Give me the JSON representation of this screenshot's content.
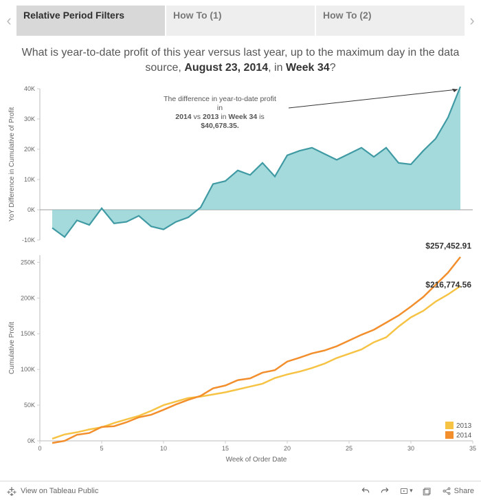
{
  "tabs": {
    "items": [
      {
        "label": "Relative Period Filters",
        "active": true
      },
      {
        "label": "How To (1)",
        "active": false
      },
      {
        "label": "How To (2)",
        "active": false
      }
    ]
  },
  "title": {
    "pre": "What is year-to-date profit of this year versus last year, up to the maximum day in the data source, ",
    "date": "August 23, 2014",
    "mid": ", in ",
    "week": "Week 34",
    "post": "?"
  },
  "annotation": {
    "line1": "The difference in year-to-date profit",
    "line2": "in",
    "line3a": "2014",
    "line3b": " vs ",
    "line3c": "2013",
    "line3d": " in ",
    "line3e": "Week 34",
    "line3f": " is",
    "line4": "$40,678.35."
  },
  "top_chart": {
    "type": "area",
    "y_title": "YoY Difference in Cumulative of Profit",
    "fill_color": "#87cdd2",
    "stroke_color": "#3f9aa3",
    "background": "#ffffff",
    "grid_color": "#e6e6e6",
    "ylim": [
      -10000,
      40000
    ],
    "yticks": [
      -10000,
      0,
      10000,
      20000,
      30000,
      40000
    ],
    "ytick_labels": [
      "-10K",
      "0K",
      "10K",
      "20K",
      "30K",
      "40K"
    ],
    "x_range": [
      0,
      35
    ],
    "values": [
      [
        1,
        -6000
      ],
      [
        2,
        -9000
      ],
      [
        3,
        -3500
      ],
      [
        4,
        -5000
      ],
      [
        5,
        500
      ],
      [
        6,
        -4500
      ],
      [
        7,
        -4000
      ],
      [
        8,
        -2000
      ],
      [
        9,
        -5500
      ],
      [
        10,
        -6500
      ],
      [
        11,
        -4000
      ],
      [
        12,
        -2500
      ],
      [
        13,
        800
      ],
      [
        14,
        8500
      ],
      [
        15,
        9500
      ],
      [
        16,
        13000
      ],
      [
        17,
        11500
      ],
      [
        18,
        15500
      ],
      [
        19,
        11000
      ],
      [
        20,
        18000
      ],
      [
        21,
        19500
      ],
      [
        22,
        20500
      ],
      [
        23,
        18500
      ],
      [
        24,
        16500
      ],
      [
        25,
        18500
      ],
      [
        26,
        20500
      ],
      [
        27,
        17500
      ],
      [
        28,
        20500
      ],
      [
        29,
        15500
      ],
      [
        30,
        15000
      ],
      [
        31,
        19500
      ],
      [
        32,
        23500
      ],
      [
        33,
        30500
      ],
      [
        34,
        40678
      ]
    ]
  },
  "bottom_chart": {
    "type": "line",
    "y_title": "Cumulative Profit",
    "x_title": "Week of Order Date",
    "background": "#ffffff",
    "grid_color": "#e6e6e6",
    "ylim": [
      0,
      260000
    ],
    "yticks": [
      0,
      50000,
      100000,
      150000,
      200000,
      250000
    ],
    "ytick_labels": [
      "0K",
      "50K",
      "100K",
      "150K",
      "200K",
      "250K"
    ],
    "x_range": [
      0,
      35
    ],
    "xticks": [
      0,
      5,
      10,
      15,
      20,
      25,
      30,
      35
    ],
    "line_width": 2.5,
    "series": [
      {
        "name": "2013",
        "color": "#f6c344",
        "callout": "$216,774.56",
        "values": [
          [
            1,
            3000
          ],
          [
            2,
            9000
          ],
          [
            3,
            12000
          ],
          [
            4,
            16000
          ],
          [
            5,
            19000
          ],
          [
            6,
            25000
          ],
          [
            7,
            30000
          ],
          [
            8,
            35000
          ],
          [
            9,
            42000
          ],
          [
            10,
            50000
          ],
          [
            11,
            55000
          ],
          [
            12,
            60000
          ],
          [
            13,
            62000
          ],
          [
            14,
            65000
          ],
          [
            15,
            68000
          ],
          [
            16,
            72000
          ],
          [
            17,
            76000
          ],
          [
            18,
            80000
          ],
          [
            19,
            88000
          ],
          [
            20,
            93000
          ],
          [
            21,
            97000
          ],
          [
            22,
            102000
          ],
          [
            23,
            108000
          ],
          [
            24,
            116000
          ],
          [
            25,
            122000
          ],
          [
            26,
            128000
          ],
          [
            27,
            138000
          ],
          [
            28,
            145000
          ],
          [
            29,
            160000
          ],
          [
            30,
            173000
          ],
          [
            31,
            182000
          ],
          [
            32,
            195000
          ],
          [
            33,
            205000
          ],
          [
            34,
            216774
          ]
        ]
      },
      {
        "name": "2014",
        "color": "#f28e2b",
        "callout": "$257,452.91",
        "values": [
          [
            1,
            -3000
          ],
          [
            2,
            0
          ],
          [
            3,
            8500
          ],
          [
            4,
            11000
          ],
          [
            5,
            19500
          ],
          [
            6,
            20500
          ],
          [
            7,
            26000
          ],
          [
            8,
            33000
          ],
          [
            9,
            36500
          ],
          [
            10,
            43500
          ],
          [
            11,
            51000
          ],
          [
            12,
            57500
          ],
          [
            13,
            63000
          ],
          [
            14,
            73500
          ],
          [
            15,
            77500
          ],
          [
            16,
            85000
          ],
          [
            17,
            87500
          ],
          [
            18,
            95500
          ],
          [
            19,
            99000
          ],
          [
            20,
            111000
          ],
          [
            21,
            116500
          ],
          [
            22,
            122500
          ],
          [
            23,
            126500
          ],
          [
            24,
            132500
          ],
          [
            25,
            140500
          ],
          [
            26,
            148500
          ],
          [
            27,
            155500
          ],
          [
            28,
            165500
          ],
          [
            29,
            175500
          ],
          [
            30,
            188000
          ],
          [
            31,
            201500
          ],
          [
            32,
            218500
          ],
          [
            33,
            235500
          ],
          [
            34,
            257452
          ]
        ]
      }
    ],
    "legend": [
      {
        "color": "#f6c344",
        "label": "2013"
      },
      {
        "color": "#f28e2b",
        "label": "2014"
      }
    ]
  },
  "footer": {
    "view_label": "View on Tableau Public",
    "share_label": "Share"
  }
}
